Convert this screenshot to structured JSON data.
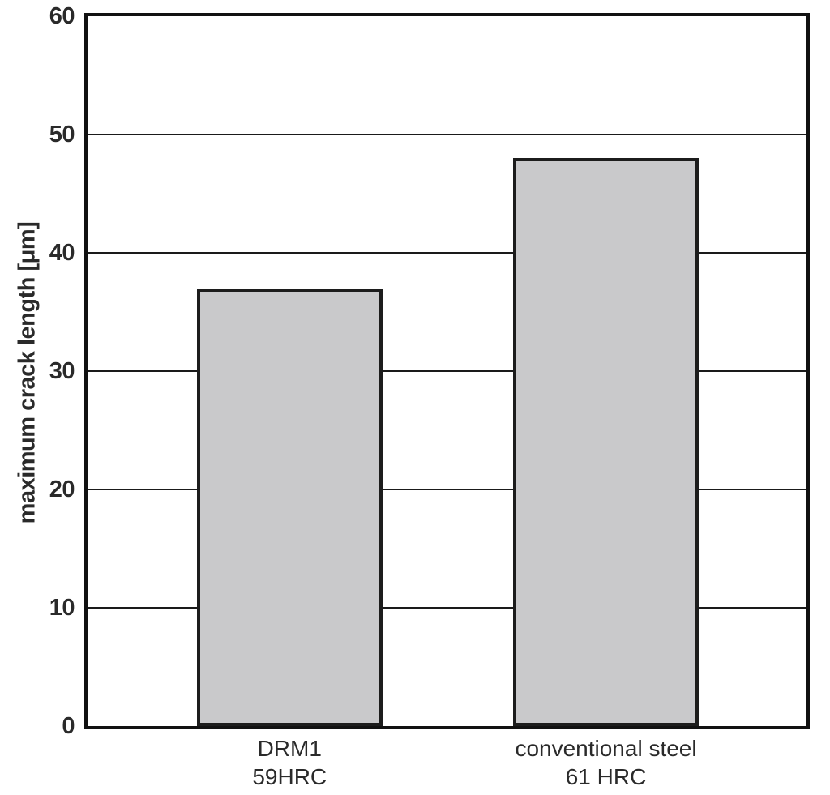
{
  "chart_data": {
    "type": "bar",
    "title": "",
    "xlabel": "",
    "ylabel": "maximum crack length [μm]",
    "ylim": [
      0,
      60
    ],
    "yticks": [
      0,
      10,
      20,
      30,
      40,
      50,
      60
    ],
    "grid": true,
    "legend": "none",
    "categories": [
      {
        "line1": "DRM1",
        "line2": "59HRC"
      },
      {
        "line1": "conventional steel",
        "line2": "61 HRC"
      }
    ],
    "values": [
      37,
      48
    ],
    "bar_fill_color": "#c9c9cb",
    "bar_border_color": "#1c1c1c",
    "axis_color": "#111111",
    "gridline_color": "#1a1a1a",
    "text_color": "#2a2a2a",
    "layout": {
      "bar_centers_frac": [
        0.281,
        0.721
      ],
      "bar_width_frac": 0.258
    }
  }
}
